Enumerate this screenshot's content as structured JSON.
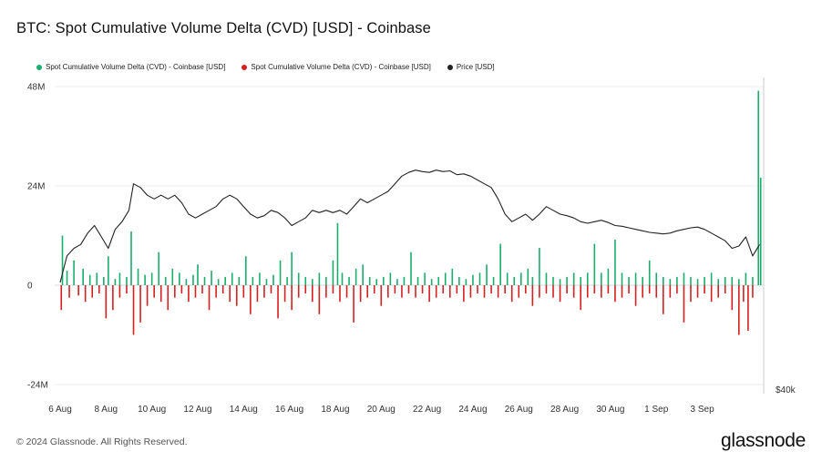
{
  "chart_data": {
    "type": "bar",
    "title": "BTC: Spot Cumulative Volume Delta (CVD) [USD] - Coinbase",
    "legend_position": "top-left",
    "grid": true,
    "x_axis": {
      "ticks": [
        "6 Aug",
        "8 Aug",
        "10 Aug",
        "12 Aug",
        "14 Aug",
        "16 Aug",
        "18 Aug",
        "20 Aug",
        "22 Aug",
        "24 Aug",
        "26 Aug",
        "28 Aug",
        "30 Aug",
        "1 Sep",
        "3 Sep"
      ],
      "range_days": [
        0,
        30.6
      ]
    },
    "y_axis_left": {
      "ticks": [
        "48M",
        "24M",
        "0",
        "-24M"
      ],
      "range": [
        -24000000,
        48000000
      ]
    },
    "y_axis_right": {
      "ticks": [
        "$40k"
      ],
      "range": [
        40000,
        76000
      ]
    },
    "series": [
      {
        "name": "Spot Cumulative Volume Delta (CVD) - Coinbase [USD]",
        "color": "#1aad6b",
        "type": "bar",
        "description_values_in_usd_millions": "positive daily-bucket CVD values",
        "points": [
          [
            0.1,
            12
          ],
          [
            0.3,
            3.5
          ],
          [
            0.6,
            6
          ],
          [
            1.0,
            4
          ],
          [
            1.3,
            2.5
          ],
          [
            1.6,
            3
          ],
          [
            1.9,
            2
          ],
          [
            2.1,
            7
          ],
          [
            2.4,
            1.5
          ],
          [
            2.6,
            3
          ],
          [
            2.9,
            2
          ],
          [
            3.1,
            13
          ],
          [
            3.4,
            4
          ],
          [
            3.7,
            2.5
          ],
          [
            4.0,
            3
          ],
          [
            4.3,
            8
          ],
          [
            4.6,
            2
          ],
          [
            4.9,
            4
          ],
          [
            5.2,
            3
          ],
          [
            5.5,
            1.5
          ],
          [
            5.8,
            2.5
          ],
          [
            6.0,
            5
          ],
          [
            6.3,
            2
          ],
          [
            6.6,
            3.5
          ],
          [
            6.9,
            1.5
          ],
          [
            7.2,
            2
          ],
          [
            7.5,
            3
          ],
          [
            7.8,
            2
          ],
          [
            8.1,
            7
          ],
          [
            8.4,
            2
          ],
          [
            8.7,
            3
          ],
          [
            9.0,
            1.5
          ],
          [
            9.3,
            2.5
          ],
          [
            9.6,
            6
          ],
          [
            9.9,
            2
          ],
          [
            10.1,
            8
          ],
          [
            10.4,
            3
          ],
          [
            10.7,
            2
          ],
          [
            11.0,
            1.5
          ],
          [
            11.3,
            3
          ],
          [
            11.6,
            2
          ],
          [
            11.9,
            6
          ],
          [
            12.1,
            15
          ],
          [
            12.3,
            3
          ],
          [
            12.6,
            2
          ],
          [
            12.9,
            4
          ],
          [
            13.2,
            5
          ],
          [
            13.5,
            2
          ],
          [
            13.8,
            1.5
          ],
          [
            14.1,
            2
          ],
          [
            14.4,
            3
          ],
          [
            14.7,
            1.5
          ],
          [
            15.0,
            2
          ],
          [
            15.3,
            8
          ],
          [
            15.6,
            2
          ],
          [
            15.9,
            3
          ],
          [
            16.2,
            1.5
          ],
          [
            16.5,
            2
          ],
          [
            16.8,
            3
          ],
          [
            17.1,
            4
          ],
          [
            17.4,
            2
          ],
          [
            17.7,
            1.5
          ],
          [
            18.0,
            2.5
          ],
          [
            18.3,
            3
          ],
          [
            18.6,
            5
          ],
          [
            18.9,
            2
          ],
          [
            19.2,
            10
          ],
          [
            19.5,
            3
          ],
          [
            19.8,
            2
          ],
          [
            20.1,
            3
          ],
          [
            20.4,
            4
          ],
          [
            20.6,
            2
          ],
          [
            20.9,
            9
          ],
          [
            21.2,
            3
          ],
          [
            21.5,
            2
          ],
          [
            21.8,
            1.5
          ],
          [
            22.1,
            2
          ],
          [
            22.4,
            3
          ],
          [
            22.7,
            2
          ],
          [
            23.0,
            3
          ],
          [
            23.3,
            10
          ],
          [
            23.6,
            3
          ],
          [
            23.9,
            4
          ],
          [
            24.2,
            11
          ],
          [
            24.5,
            3
          ],
          [
            24.8,
            2
          ],
          [
            25.1,
            3
          ],
          [
            25.4,
            2
          ],
          [
            25.7,
            6
          ],
          [
            26.0,
            3
          ],
          [
            26.3,
            2
          ],
          [
            26.6,
            1.5
          ],
          [
            26.9,
            2
          ],
          [
            27.2,
            3
          ],
          [
            27.5,
            2
          ],
          [
            27.8,
            1.5
          ],
          [
            28.1,
            2
          ],
          [
            28.4,
            3
          ],
          [
            28.7,
            1.5
          ],
          [
            29.0,
            2
          ],
          [
            29.3,
            2
          ],
          [
            29.6,
            1.5
          ],
          [
            29.9,
            3
          ],
          [
            30.2,
            2
          ],
          [
            30.45,
            47
          ],
          [
            30.55,
            26
          ]
        ]
      },
      {
        "name": "Spot Cumulative Volume Delta (CVD) - Coinbase [USD]",
        "color": "#d42020",
        "type": "bar",
        "description_values_in_usd_millions": "negative daily-bucket CVD values",
        "points": [
          [
            0.05,
            -6
          ],
          [
            0.4,
            -3
          ],
          [
            0.8,
            -2.5
          ],
          [
            1.1,
            -4
          ],
          [
            1.4,
            -3
          ],
          [
            1.7,
            -2
          ],
          [
            2.0,
            -8
          ],
          [
            2.3,
            -6
          ],
          [
            2.6,
            -3
          ],
          [
            2.9,
            -2
          ],
          [
            3.2,
            -12
          ],
          [
            3.5,
            -9
          ],
          [
            3.8,
            -5
          ],
          [
            4.1,
            -3
          ],
          [
            4.4,
            -4
          ],
          [
            4.7,
            -6
          ],
          [
            5.0,
            -3
          ],
          [
            5.3,
            -2
          ],
          [
            5.6,
            -4
          ],
          [
            5.9,
            -3
          ],
          [
            6.2,
            -2
          ],
          [
            6.5,
            -6
          ],
          [
            6.8,
            -3
          ],
          [
            7.1,
            -2
          ],
          [
            7.4,
            -4
          ],
          [
            7.7,
            -5
          ],
          [
            8.0,
            -3
          ],
          [
            8.3,
            -7
          ],
          [
            8.6,
            -4
          ],
          [
            8.9,
            -3
          ],
          [
            9.2,
            -2
          ],
          [
            9.5,
            -8
          ],
          [
            9.8,
            -4
          ],
          [
            10.1,
            -6
          ],
          [
            10.4,
            -3
          ],
          [
            10.7,
            -2
          ],
          [
            11.0,
            -4
          ],
          [
            11.3,
            -7
          ],
          [
            11.6,
            -3
          ],
          [
            11.9,
            -2
          ],
          [
            12.2,
            -4
          ],
          [
            12.5,
            -3
          ],
          [
            12.8,
            -9
          ],
          [
            13.1,
            -4
          ],
          [
            13.4,
            -3
          ],
          [
            13.7,
            -2
          ],
          [
            14.0,
            -5
          ],
          [
            14.3,
            -3
          ],
          [
            14.6,
            -2
          ],
          [
            14.9,
            -3
          ],
          [
            15.2,
            -2
          ],
          [
            15.5,
            -3
          ],
          [
            15.8,
            -2
          ],
          [
            16.1,
            -4
          ],
          [
            16.4,
            -3
          ],
          [
            16.7,
            -2
          ],
          [
            17.0,
            -3
          ],
          [
            17.3,
            -2
          ],
          [
            17.6,
            -4
          ],
          [
            17.9,
            -3
          ],
          [
            18.2,
            -2
          ],
          [
            18.5,
            -3
          ],
          [
            18.8,
            -2
          ],
          [
            19.1,
            -3
          ],
          [
            19.4,
            -2
          ],
          [
            19.7,
            -4
          ],
          [
            20.0,
            -3
          ],
          [
            20.3,
            -2
          ],
          [
            20.6,
            -5
          ],
          [
            20.9,
            -3
          ],
          [
            21.2,
            -2
          ],
          [
            21.5,
            -3
          ],
          [
            21.8,
            -4
          ],
          [
            22.1,
            -2
          ],
          [
            22.4,
            -3
          ],
          [
            22.7,
            -6
          ],
          [
            23.0,
            -3
          ],
          [
            23.3,
            -2
          ],
          [
            23.6,
            -3
          ],
          [
            23.9,
            -2
          ],
          [
            24.2,
            -4
          ],
          [
            24.5,
            -3
          ],
          [
            24.8,
            -2
          ],
          [
            25.1,
            -5
          ],
          [
            25.4,
            -3
          ],
          [
            25.7,
            -2
          ],
          [
            26.0,
            -3
          ],
          [
            26.3,
            -7
          ],
          [
            26.6,
            -3
          ],
          [
            26.9,
            -2
          ],
          [
            27.2,
            -9
          ],
          [
            27.5,
            -4
          ],
          [
            27.8,
            -3
          ],
          [
            28.1,
            -2
          ],
          [
            28.4,
            -4
          ],
          [
            28.7,
            -3
          ],
          [
            29.0,
            -2
          ],
          [
            29.3,
            -6
          ],
          [
            29.6,
            -12
          ],
          [
            29.8,
            -4
          ],
          [
            30.0,
            -11
          ],
          [
            30.2,
            -3
          ]
        ]
      },
      {
        "name": "Price [USD]",
        "color": "#222222",
        "type": "line",
        "points": [
          [
            0.0,
            55
          ],
          [
            0.3,
            58.5
          ],
          [
            0.6,
            59.5
          ],
          [
            0.9,
            60
          ],
          [
            1.2,
            61.5
          ],
          [
            1.5,
            62.5
          ],
          [
            1.8,
            61
          ],
          [
            2.1,
            59.5
          ],
          [
            2.4,
            62
          ],
          [
            2.7,
            63
          ],
          [
            3.0,
            64.5
          ],
          [
            3.2,
            68
          ],
          [
            3.5,
            67.5
          ],
          [
            3.8,
            66.5
          ],
          [
            4.1,
            66
          ],
          [
            4.4,
            66.5
          ],
          [
            4.7,
            66
          ],
          [
            5.0,
            66.5
          ],
          [
            5.3,
            65.5
          ],
          [
            5.6,
            64
          ],
          [
            5.9,
            63.5
          ],
          [
            6.2,
            64
          ],
          [
            6.5,
            64.5
          ],
          [
            6.8,
            65
          ],
          [
            7.1,
            66
          ],
          [
            7.4,
            66.5
          ],
          [
            7.7,
            66
          ],
          [
            8.0,
            65
          ],
          [
            8.3,
            64
          ],
          [
            8.6,
            63.5
          ],
          [
            8.9,
            63.8
          ],
          [
            9.2,
            64.5
          ],
          [
            9.5,
            64.2
          ],
          [
            9.8,
            63.5
          ],
          [
            10.1,
            62.5
          ],
          [
            10.4,
            63
          ],
          [
            10.7,
            63.5
          ],
          [
            11.0,
            64.5
          ],
          [
            11.3,
            64.2
          ],
          [
            11.6,
            64.5
          ],
          [
            11.9,
            64.2
          ],
          [
            12.2,
            64.5
          ],
          [
            12.5,
            64
          ],
          [
            12.8,
            65
          ],
          [
            13.1,
            66
          ],
          [
            13.4,
            65.5
          ],
          [
            13.7,
            66
          ],
          [
            14.0,
            66.5
          ],
          [
            14.3,
            67
          ],
          [
            14.6,
            68
          ],
          [
            14.9,
            69
          ],
          [
            15.2,
            69.5
          ],
          [
            15.5,
            69.8
          ],
          [
            15.8,
            69.6
          ],
          [
            16.1,
            69.5
          ],
          [
            16.4,
            69.8
          ],
          [
            16.7,
            69.6
          ],
          [
            17.0,
            69.7
          ],
          [
            17.3,
            69.2
          ],
          [
            17.6,
            69.3
          ],
          [
            17.9,
            69
          ],
          [
            18.2,
            68.5
          ],
          [
            18.5,
            68
          ],
          [
            18.8,
            67.5
          ],
          [
            19.1,
            66
          ],
          [
            19.4,
            64
          ],
          [
            19.7,
            63
          ],
          [
            20.0,
            63.5
          ],
          [
            20.3,
            64
          ],
          [
            20.6,
            63.2
          ],
          [
            20.9,
            64
          ],
          [
            21.2,
            65
          ],
          [
            21.5,
            64.5
          ],
          [
            21.8,
            64
          ],
          [
            22.1,
            63.8
          ],
          [
            22.4,
            63.5
          ],
          [
            22.7,
            63
          ],
          [
            23.0,
            62.8
          ],
          [
            23.3,
            63
          ],
          [
            23.6,
            63.2
          ],
          [
            23.9,
            62.9
          ],
          [
            24.2,
            62.5
          ],
          [
            24.5,
            62.4
          ],
          [
            24.8,
            62.2
          ],
          [
            25.1,
            62
          ],
          [
            25.4,
            61.8
          ],
          [
            25.7,
            61.6
          ],
          [
            26.0,
            61.5
          ],
          [
            26.3,
            61.4
          ],
          [
            26.6,
            61.5
          ],
          [
            26.9,
            61.8
          ],
          [
            27.2,
            62
          ],
          [
            27.5,
            62.2
          ],
          [
            27.8,
            62.3
          ],
          [
            28.1,
            62
          ],
          [
            28.4,
            61.5
          ],
          [
            28.7,
            61
          ],
          [
            29.0,
            60.5
          ],
          [
            29.3,
            59.5
          ],
          [
            29.6,
            59.8
          ],
          [
            29.9,
            61
          ],
          [
            30.2,
            58.5
          ],
          [
            30.5,
            60
          ]
        ]
      }
    ]
  },
  "legend": [
    {
      "label": "Spot Cumulative Volume Delta (CVD) - Coinbase [USD]",
      "color": "#1aad6b"
    },
    {
      "label": "Spot Cumulative Volume Delta (CVD) - Coinbase [USD]",
      "color": "#d42020"
    },
    {
      "label": "Price [USD]",
      "color": "#222222"
    }
  ],
  "footer": {
    "copyright": "© 2024 Glassnode. All Rights Reserved.",
    "brand": "glassnode"
  }
}
